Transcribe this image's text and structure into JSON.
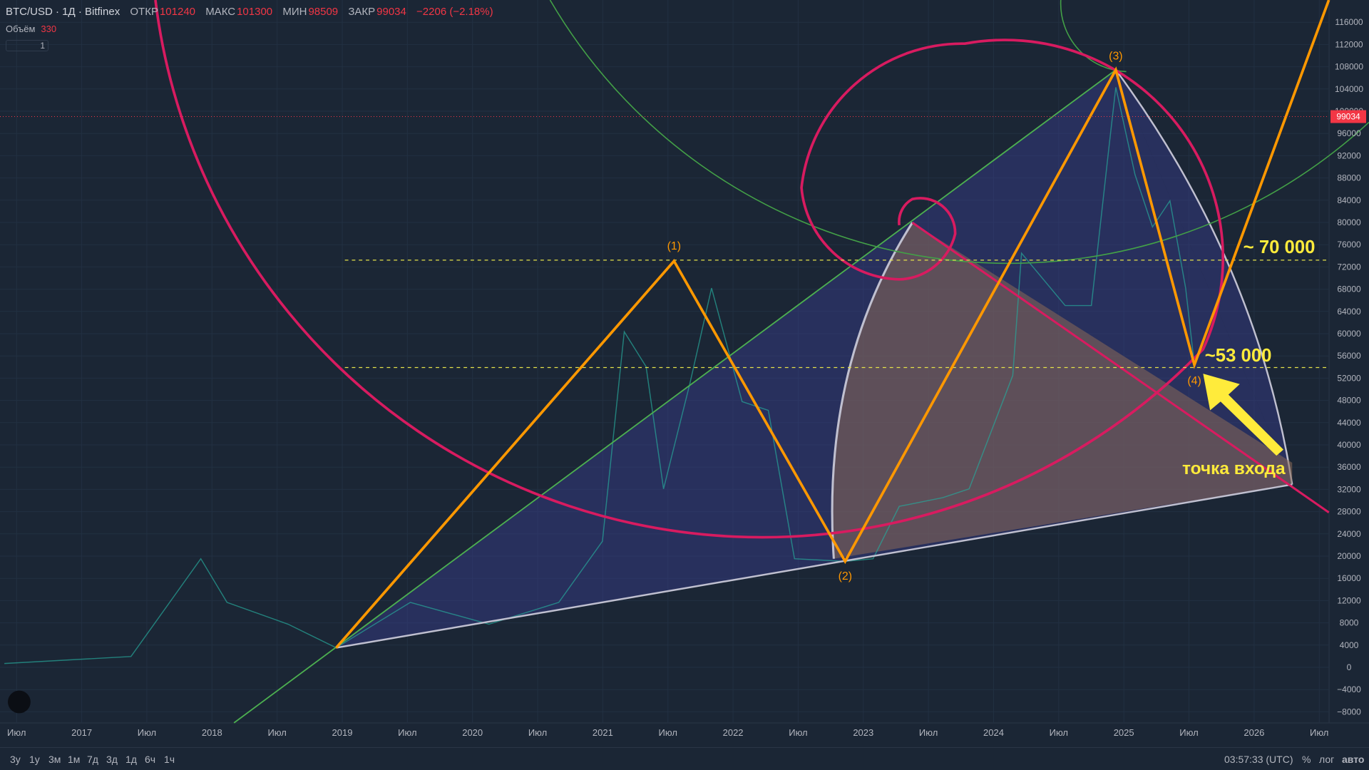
{
  "header": {
    "title": "BTC/USD · 1Д · Bitfinex",
    "open_label": "ОТКР",
    "open": "101240",
    "high_label": "МАКС",
    "high": "101300",
    "low_label": "МИН",
    "low": "98509",
    "close_label": "ЗАКР",
    "close": "99034",
    "change": "−2206 (−2.18%)",
    "volume_label": "Объём",
    "volume": "330",
    "indicators": "1"
  },
  "price_axis": {
    "ylim": [
      -10000,
      120000
    ],
    "ticks": [
      {
        "value": -8000,
        "label": "−8000"
      },
      {
        "value": -4000,
        "label": "−4000"
      },
      0,
      4000,
      8000,
      12000,
      16000,
      20000,
      24000,
      28000,
      32000,
      36000,
      40000,
      44000,
      48000,
      52000,
      56000,
      60000,
      64000,
      68000,
      72000,
      76000,
      80000,
      84000,
      88000,
      92000,
      96000,
      100000,
      104000,
      108000,
      112000,
      116000
    ],
    "last_price": {
      "value": 99034,
      "label": "99034"
    }
  },
  "time_axis": {
    "labels": [
      "Июл",
      "2017",
      "Июл",
      "2018",
      "Июл",
      "2019",
      "Июл",
      "2020",
      "Июл",
      "2021",
      "Июл",
      "2022",
      "Июл",
      "2023",
      "Июл",
      "2024",
      "Июл",
      "2025",
      "Июл",
      "2026",
      "Июл"
    ]
  },
  "annotations": {
    "wave1": "(1)",
    "wave2": "(2)",
    "wave3": "(3)",
    "wave4": "(4)",
    "level_high": "~ 70 000",
    "level_low": "~53 000",
    "entry": "точка входа"
  },
  "toolbar": {
    "ranges": [
      "3у",
      "1у",
      "3м",
      "1м",
      "7д",
      "3д",
      "1д",
      "6ч",
      "1ч"
    ],
    "clock": "03:57:33 (UTC)",
    "percent": "%",
    "log": "лог",
    "auto": "авто"
  }
}
